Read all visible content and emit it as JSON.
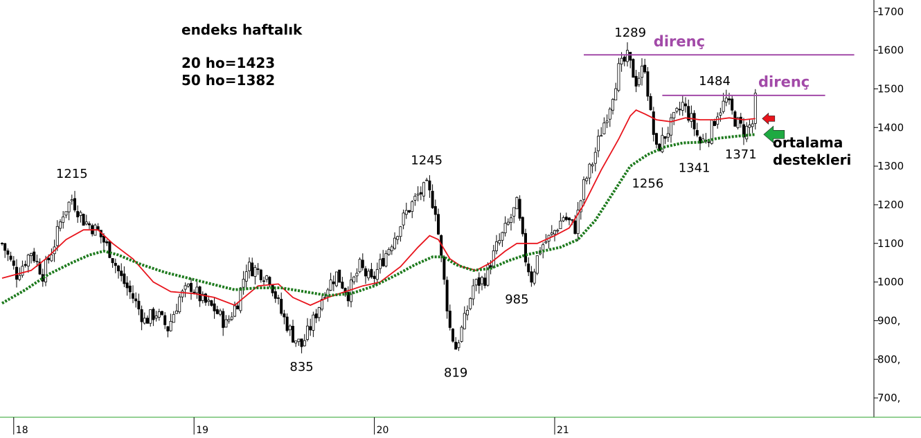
{
  "chart_data": {
    "type": "candlestick",
    "title": "endeks haftalık",
    "ma_labels": [
      "20 ho=1423",
      "50 ho=1382"
    ],
    "ylim": [
      650,
      1730
    ],
    "y_ticks": [
      {
        "v": 1700,
        "label": "1700"
      },
      {
        "v": 1600,
        "label": "1600"
      },
      {
        "v": 1500,
        "label": "1500"
      },
      {
        "v": 1400,
        "label": "1400"
      },
      {
        "v": 1300,
        "label": "1300"
      },
      {
        "v": 1200,
        "label": "1200"
      },
      {
        "v": 1100,
        "label": "1100"
      },
      {
        "v": 1000,
        "label": "1000"
      },
      {
        "v": 900,
        "label": "900,"
      },
      {
        "v": 800,
        "label": "800,"
      },
      {
        "v": 700,
        "label": "700,"
      }
    ],
    "x_ticks": [
      {
        "i": 4,
        "label": "18"
      },
      {
        "i": 66,
        "label": "19"
      },
      {
        "i": 128,
        "label": "20"
      },
      {
        "i": 190,
        "label": "21"
      }
    ],
    "x_count": 285,
    "price_series": [
      {
        "i": 0,
        "p": 1100
      },
      {
        "i": 5,
        "p": 1020
      },
      {
        "i": 10,
        "p": 1080
      },
      {
        "i": 14,
        "p": 1020
      },
      {
        "i": 18,
        "p": 1100
      },
      {
        "i": 21,
        "p": 1180
      },
      {
        "i": 24,
        "p": 1215
      },
      {
        "i": 28,
        "p": 1160
      },
      {
        "i": 33,
        "p": 1130
      },
      {
        "i": 37,
        "p": 1080
      },
      {
        "i": 41,
        "p": 1010
      },
      {
        "i": 45,
        "p": 960
      },
      {
        "i": 49,
        "p": 900
      },
      {
        "i": 53,
        "p": 920
      },
      {
        "i": 57,
        "p": 880
      },
      {
        "i": 61,
        "p": 960
      },
      {
        "i": 65,
        "p": 990
      },
      {
        "i": 69,
        "p": 950
      },
      {
        "i": 73,
        "p": 930
      },
      {
        "i": 77,
        "p": 890
      },
      {
        "i": 81,
        "p": 950
      },
      {
        "i": 84,
        "p": 1040
      },
      {
        "i": 88,
        "p": 1030
      },
      {
        "i": 92,
        "p": 1010
      },
      {
        "i": 96,
        "p": 920
      },
      {
        "i": 100,
        "p": 860
      },
      {
        "i": 103,
        "p": 835
      },
      {
        "i": 107,
        "p": 900
      },
      {
        "i": 111,
        "p": 980
      },
      {
        "i": 115,
        "p": 1020
      },
      {
        "i": 119,
        "p": 970
      },
      {
        "i": 123,
        "p": 1040
      },
      {
        "i": 127,
        "p": 1000
      },
      {
        "i": 131,
        "p": 1060
      },
      {
        "i": 135,
        "p": 1120
      },
      {
        "i": 139,
        "p": 1180
      },
      {
        "i": 143,
        "p": 1225
      },
      {
        "i": 146,
        "p": 1245
      },
      {
        "i": 149,
        "p": 1190
      },
      {
        "i": 151,
        "p": 1060
      },
      {
        "i": 154,
        "p": 880
      },
      {
        "i": 156,
        "p": 830
      },
      {
        "i": 159,
        "p": 900
      },
      {
        "i": 162,
        "p": 990
      },
      {
        "i": 166,
        "p": 1010
      },
      {
        "i": 170,
        "p": 1090
      },
      {
        "i": 174,
        "p": 1150
      },
      {
        "i": 177,
        "p": 1200
      },
      {
        "i": 180,
        "p": 1060
      },
      {
        "i": 182,
        "p": 1010
      },
      {
        "i": 185,
        "p": 1090
      },
      {
        "i": 189,
        "p": 1120
      },
      {
        "i": 193,
        "p": 1170
      },
      {
        "i": 197,
        "p": 1140
      },
      {
        "i": 200,
        "p": 1250
      },
      {
        "i": 203,
        "p": 1310
      },
      {
        "i": 206,
        "p": 1390
      },
      {
        "i": 209,
        "p": 1460
      },
      {
        "i": 212,
        "p": 1550
      },
      {
        "i": 215,
        "p": 1580
      },
      {
        "i": 218,
        "p": 1520
      },
      {
        "i": 221,
        "p": 1560
      },
      {
        "i": 223,
        "p": 1430
      },
      {
        "i": 225,
        "p": 1340
      },
      {
        "i": 228,
        "p": 1380
      },
      {
        "i": 231,
        "p": 1420
      },
      {
        "i": 234,
        "p": 1460
      },
      {
        "i": 237,
        "p": 1420
      },
      {
        "i": 240,
        "p": 1360
      },
      {
        "i": 243,
        "p": 1380
      },
      {
        "i": 246,
        "p": 1440
      },
      {
        "i": 249,
        "p": 1470
      },
      {
        "i": 252,
        "p": 1420
      },
      {
        "i": 255,
        "p": 1390
      },
      {
        "i": 258,
        "p": 1410
      },
      {
        "i": 259,
        "p": 1470
      }
    ],
    "ma20": [
      {
        "i": 0,
        "v": 1010
      },
      {
        "i": 10,
        "v": 1030
      },
      {
        "i": 15,
        "v": 1060
      },
      {
        "i": 22,
        "v": 1110
      },
      {
        "i": 28,
        "v": 1135
      },
      {
        "i": 33,
        "v": 1135
      },
      {
        "i": 38,
        "v": 1100
      },
      {
        "i": 45,
        "v": 1060
      },
      {
        "i": 52,
        "v": 1000
      },
      {
        "i": 58,
        "v": 975
      },
      {
        "i": 66,
        "v": 970
      },
      {
        "i": 73,
        "v": 960
      },
      {
        "i": 80,
        "v": 940
      },
      {
        "i": 88,
        "v": 990
      },
      {
        "i": 95,
        "v": 995
      },
      {
        "i": 100,
        "v": 960
      },
      {
        "i": 106,
        "v": 940
      },
      {
        "i": 112,
        "v": 960
      },
      {
        "i": 118,
        "v": 975
      },
      {
        "i": 124,
        "v": 990
      },
      {
        "i": 130,
        "v": 1000
      },
      {
        "i": 137,
        "v": 1040
      },
      {
        "i": 143,
        "v": 1090
      },
      {
        "i": 147,
        "v": 1120
      },
      {
        "i": 150,
        "v": 1110
      },
      {
        "i": 154,
        "v": 1060
      },
      {
        "i": 158,
        "v": 1040
      },
      {
        "i": 163,
        "v": 1030
      },
      {
        "i": 168,
        "v": 1050
      },
      {
        "i": 173,
        "v": 1080
      },
      {
        "i": 177,
        "v": 1100
      },
      {
        "i": 184,
        "v": 1100
      },
      {
        "i": 190,
        "v": 1120
      },
      {
        "i": 195,
        "v": 1140
      },
      {
        "i": 200,
        "v": 1200
      },
      {
        "i": 206,
        "v": 1290
      },
      {
        "i": 212,
        "v": 1370
      },
      {
        "i": 216,
        "v": 1430
      },
      {
        "i": 218,
        "v": 1445
      },
      {
        "i": 221,
        "v": 1435
      },
      {
        "i": 225,
        "v": 1420
      },
      {
        "i": 230,
        "v": 1415
      },
      {
        "i": 235,
        "v": 1425
      },
      {
        "i": 240,
        "v": 1420
      },
      {
        "i": 245,
        "v": 1420
      },
      {
        "i": 250,
        "v": 1425
      },
      {
        "i": 255,
        "v": 1420
      },
      {
        "i": 259,
        "v": 1423
      }
    ],
    "ma50": [
      {
        "i": 0,
        "v": 945
      },
      {
        "i": 8,
        "v": 980
      },
      {
        "i": 16,
        "v": 1020
      },
      {
        "i": 24,
        "v": 1050
      },
      {
        "i": 30,
        "v": 1070
      },
      {
        "i": 35,
        "v": 1080
      },
      {
        "i": 40,
        "v": 1070
      },
      {
        "i": 48,
        "v": 1045
      },
      {
        "i": 56,
        "v": 1025
      },
      {
        "i": 64,
        "v": 1010
      },
      {
        "i": 72,
        "v": 995
      },
      {
        "i": 80,
        "v": 980
      },
      {
        "i": 88,
        "v": 985
      },
      {
        "i": 96,
        "v": 985
      },
      {
        "i": 104,
        "v": 975
      },
      {
        "i": 112,
        "v": 965
      },
      {
        "i": 120,
        "v": 970
      },
      {
        "i": 128,
        "v": 990
      },
      {
        "i": 136,
        "v": 1020
      },
      {
        "i": 142,
        "v": 1045
      },
      {
        "i": 148,
        "v": 1065
      },
      {
        "i": 152,
        "v": 1065
      },
      {
        "i": 156,
        "v": 1045
      },
      {
        "i": 162,
        "v": 1030
      },
      {
        "i": 168,
        "v": 1035
      },
      {
        "i": 174,
        "v": 1055
      },
      {
        "i": 180,
        "v": 1070
      },
      {
        "i": 186,
        "v": 1080
      },
      {
        "i": 192,
        "v": 1090
      },
      {
        "i": 198,
        "v": 1110
      },
      {
        "i": 204,
        "v": 1160
      },
      {
        "i": 210,
        "v": 1230
      },
      {
        "i": 216,
        "v": 1300
      },
      {
        "i": 222,
        "v": 1330
      },
      {
        "i": 228,
        "v": 1350
      },
      {
        "i": 234,
        "v": 1360
      },
      {
        "i": 240,
        "v": 1362
      },
      {
        "i": 246,
        "v": 1372
      },
      {
        "i": 252,
        "v": 1377
      },
      {
        "i": 259,
        "v": 1382
      }
    ],
    "annotations": [
      {
        "text": "1215",
        "i": 24,
        "v": 1270
      },
      {
        "text": "1245",
        "i": 146,
        "v": 1305
      },
      {
        "text": "835",
        "i": 103,
        "v": 770
      },
      {
        "text": "819",
        "i": 156,
        "v": 755
      },
      {
        "text": "985",
        "i": 177,
        "v": 945
      },
      {
        "text": "1289",
        "i": 216,
        "v": 1635
      },
      {
        "text": "1256",
        "i": 222,
        "v": 1245
      },
      {
        "text": "1484",
        "i": 245,
        "v": 1510
      },
      {
        "text": "1341",
        "i": 238,
        "v": 1285
      },
      {
        "text": "1371",
        "i": 254,
        "v": 1320
      }
    ],
    "resistance_lines": [
      {
        "i0": 200,
        "i1": 293,
        "v": 1588,
        "label": "direnç",
        "label_i": 224,
        "label_v": 1610
      },
      {
        "i0": 227,
        "i1": 283,
        "v": 1483,
        "label": "direnç",
        "label_i": 260,
        "label_v": 1505
      }
    ],
    "support_label": [
      "ortalama",
      "destekleri"
    ],
    "colors": {
      "ma20": "#e8141c",
      "ma50": "#1d7a1d",
      "resistance": "#a24aa8",
      "arrow_red": "#e8141c",
      "arrow_green": "#1faa42",
      "x_axis_line": "#2aa12a"
    }
  }
}
